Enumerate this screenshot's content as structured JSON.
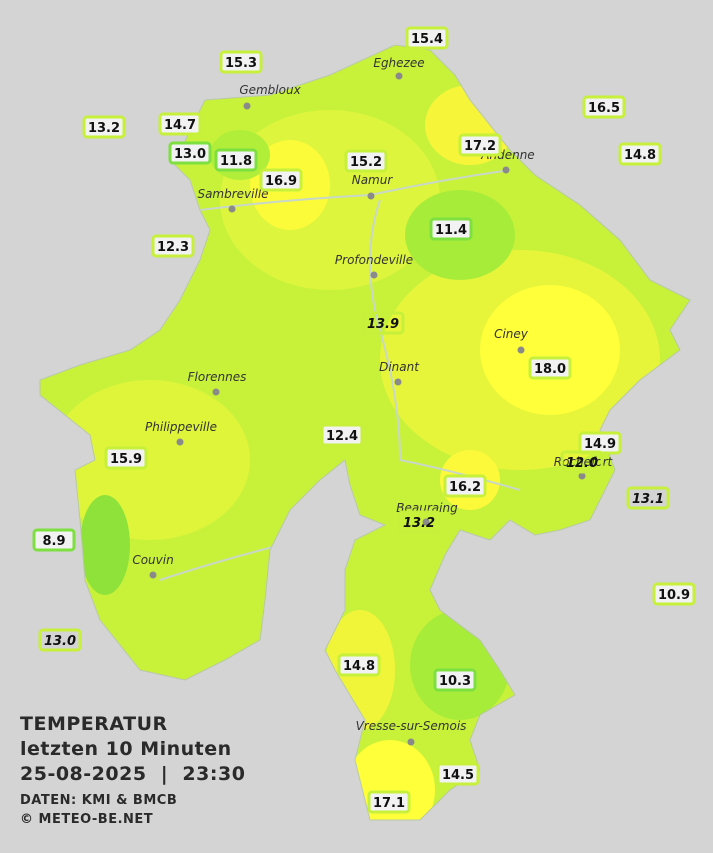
{
  "title": {
    "line1": "TEMPERATUR",
    "line2": "letzten 10 Minuten",
    "line3": "25-08-2025  |  23:30",
    "source": "DATEN: KMI & BMCB",
    "copyright": "© METEO-BE.NET"
  },
  "cities": [
    "Eghezee",
    "Gembloux",
    "Andenne",
    "Namur",
    "Sambreville",
    "Profondeville",
    "Ciney",
    "Florennes",
    "Dinant",
    "Philippeville",
    "Rochefort",
    "Beauraing",
    "Couvin",
    "Vresse-sur-Semois"
  ],
  "stations": [
    "15.4",
    "15.3",
    "16.5",
    "13.2",
    "14.7",
    "17.2",
    "14.8",
    "13.0",
    "11.8",
    "15.2",
    "16.9",
    "12.3",
    "11.4",
    "13.9",
    "18.0",
    "12.4",
    "14.9",
    "12.0",
    "15.9",
    "16.2",
    "13.1",
    "13.2",
    "8.9",
    "10.9",
    "13.0",
    "14.8",
    "10.3",
    "14.5",
    "17.1"
  ]
}
